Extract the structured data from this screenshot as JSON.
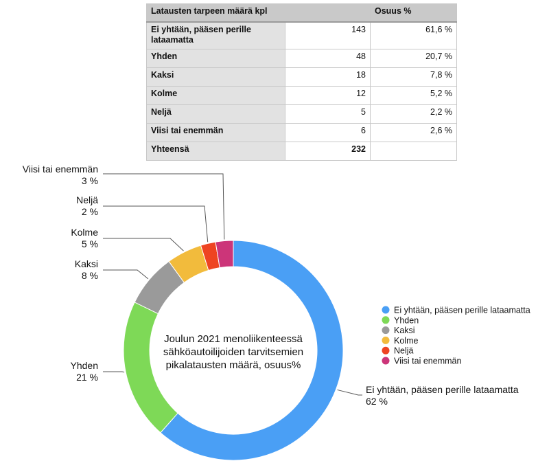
{
  "table": {
    "headers": [
      "Latausten tarpeen määrä kpl",
      "",
      "Osuus %"
    ],
    "rows": [
      {
        "label": "Ei yhtään, pääsen perille lataamatta",
        "count": "143",
        "share": "61,6 %"
      },
      {
        "label": "Yhden",
        "count": "48",
        "share": "20,7 %"
      },
      {
        "label": "Kaksi",
        "count": "18",
        "share": "7,8 %"
      },
      {
        "label": "Kolme",
        "count": "12",
        "share": "5,2 %"
      },
      {
        "label": "Neljä",
        "count": "5",
        "share": "2,2 %"
      },
      {
        "label": "Viisi tai enemmän",
        "count": "6",
        "share": "2,6 %"
      }
    ],
    "total": {
      "label": "Yhteensä",
      "count": "232",
      "share": ""
    }
  },
  "chart_data": {
    "type": "pie",
    "variant": "donut",
    "title": "Joulun 2021 menoliikenteessä sähköautoilijoiden tarvitsemien pikalatausten määrä, osuus%",
    "title_lines": [
      "Joulun 2021 menoliikenteessä",
      "sähköautoilijoiden tarvitsemien",
      "pikalatausten määrä, osuus%"
    ],
    "categories": [
      "Ei yhtään, pääsen perille lataamatta",
      "Yhden",
      "Kaksi",
      "Kolme",
      "Neljä",
      "Viisi tai enemmän"
    ],
    "values": [
      61.6,
      20.7,
      7.8,
      5.2,
      2.2,
      2.6
    ],
    "data_labels": [
      "62 %",
      "21 %",
      "8 %",
      "5 %",
      "2 %",
      "3 %"
    ],
    "colors": [
      "#4a9ff5",
      "#7ed957",
      "#9a9a9a",
      "#f2bb3c",
      "#ee4422",
      "#cc3579"
    ],
    "legend_position": "right"
  }
}
